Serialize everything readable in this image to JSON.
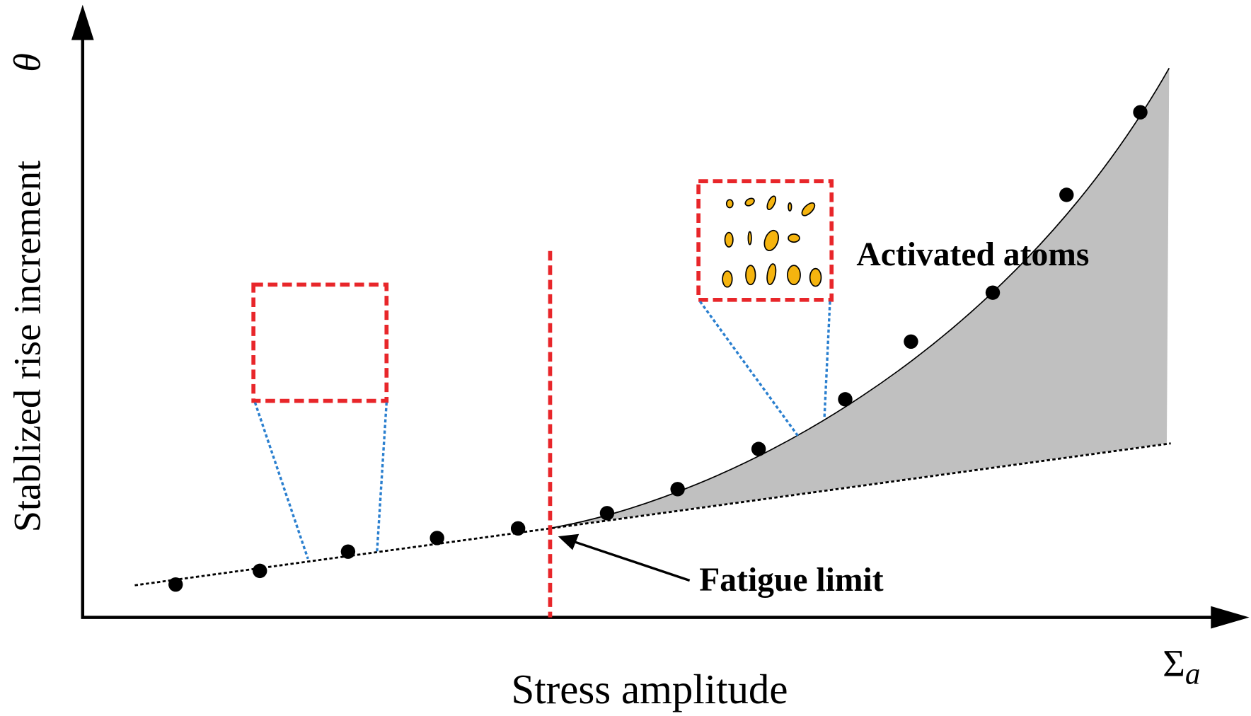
{
  "axes": {
    "y_label": "Stablized rise increment",
    "y_symbol": "θ",
    "x_label": "Stress amplitude",
    "x_symbol": "Σ",
    "x_symbol_subscript": "a"
  },
  "annotations": {
    "activated_atoms": "Activated atoms",
    "fatigue_limit": "Fatigue limit"
  }
}
